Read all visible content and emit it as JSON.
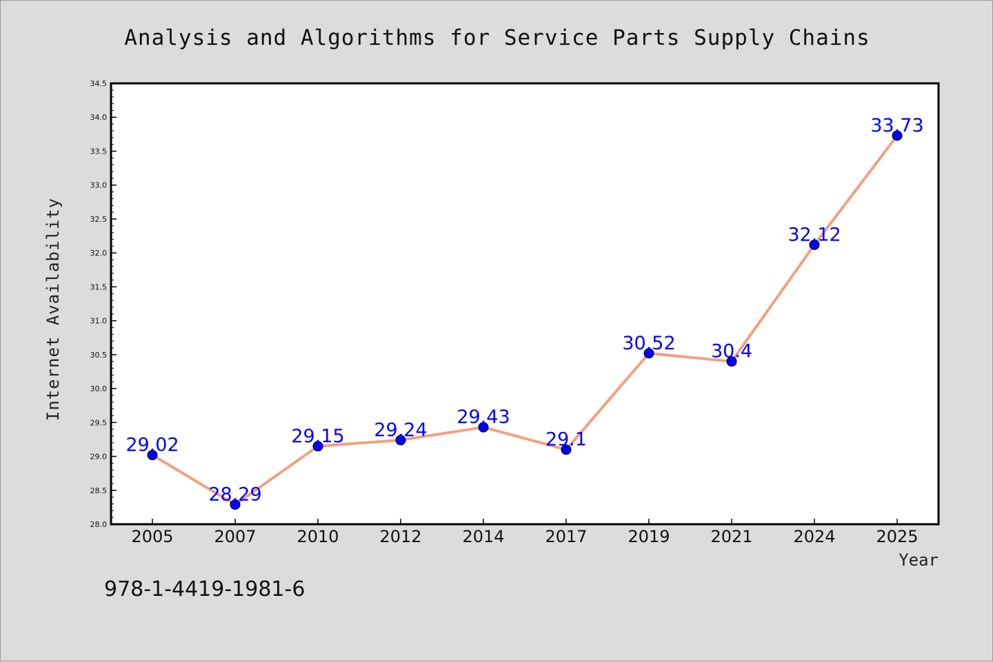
{
  "colors": {
    "background": "#dcdcdc",
    "plot_background": "#ffffff",
    "line": "#f4a07c",
    "marker": "#0000ff",
    "data_label": "#0000ff"
  },
  "footer": {
    "isbn": "978-1-4419-1981-6"
  },
  "chart_data": {
    "type": "line",
    "title": "Analysis and Algorithms for Service Parts Supply Chains",
    "xlabel": "Year",
    "ylabel": "Internet Availability",
    "categories": [
      "2005",
      "2007",
      "2010",
      "2012",
      "2014",
      "2017",
      "2019",
      "2021",
      "2024",
      "2025"
    ],
    "series": [
      {
        "values": [
          29.02,
          28.29,
          29.15,
          29.24,
          29.43,
          29.1,
          30.52,
          30.4,
          32.12,
          33.73
        ],
        "data_labels": [
          "29.02",
          "28.29",
          "29.15",
          "29.24",
          "29.43",
          "29.1",
          "30.52",
          "30.4",
          "32.12",
          "33.73"
        ]
      }
    ],
    "ylim": [
      28.0,
      34.5
    ],
    "yticks": [
      "28.0",
      "28.5",
      "29.0",
      "29.5",
      "30.0",
      "30.5",
      "31.0",
      "31.5",
      "32.0",
      "32.5",
      "33.0",
      "33.5",
      "34.0",
      "34.5"
    ],
    "grid": false,
    "legend": "none"
  }
}
